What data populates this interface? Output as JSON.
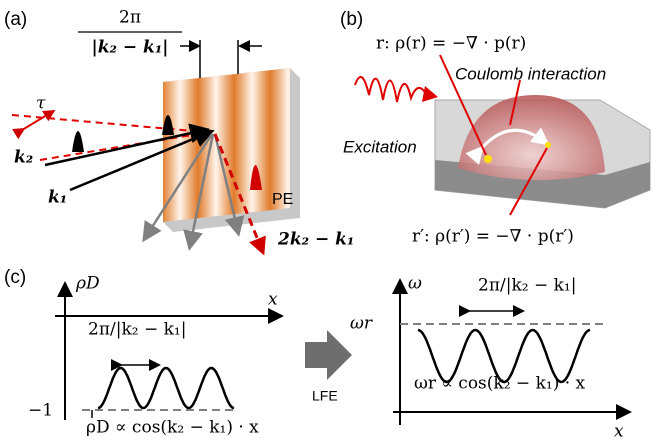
{
  "panel_a": {
    "label": "(a)",
    "period_numerator": "2π",
    "period_denominator": "|k₂ − k₁|",
    "delay": "τ",
    "beam_k2": "k₂",
    "beam_k1": "k₁",
    "signal": "PE",
    "signal_direction": "2k₂ − k₁"
  },
  "panel_b": {
    "label": "(b)",
    "position_r": "r: ρ(r) = −∇ · p(r)",
    "interaction": "Coulomb interaction",
    "excitation": "Excitation",
    "position_r_prime": "r′: ρ(r′) = −∇ · p(r′)"
  },
  "panel_c": {
    "label": "(c)",
    "transform": "LFE",
    "left": {
      "y_label": "ρD",
      "x_label": "x",
      "period": "2π/|k₂ − k₁|",
      "baseline": "−1",
      "relation": "ρD ∝ cos(k₂ − k₁) · x"
    },
    "right": {
      "y_label": "ω",
      "x_label": "x",
      "period": "2π/|k₂ − k₁|",
      "baseline": "ωr",
      "relation": "ωr ∝ cos(k₂ − k₁) · x"
    }
  }
}
